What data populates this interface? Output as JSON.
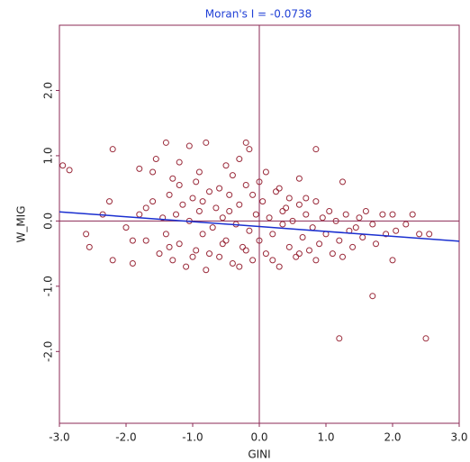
{
  "chart_data": {
    "type": "scatter",
    "title": "Moran's I = -0.0738",
    "x_label": "GINI",
    "y_label": "W_MIG",
    "xlim": [
      -3,
      3
    ],
    "ylim": [
      -3.1,
      3.0
    ],
    "xticks": [
      {
        "value": -3,
        "label": "-3.0"
      },
      {
        "value": -2,
        "label": "-2.0"
      },
      {
        "value": -1,
        "label": "-1.0"
      },
      {
        "value": 0,
        "label": "0.0"
      },
      {
        "value": 1,
        "label": "1.0"
      },
      {
        "value": 2,
        "label": "2.0"
      },
      {
        "value": 3,
        "label": "3.0"
      }
    ],
    "yticks": [
      {
        "value": -2,
        "label": "-2.0"
      },
      {
        "value": -1,
        "label": "-1.0"
      },
      {
        "value": 0,
        "label": "0.0"
      },
      {
        "value": 1,
        "label": "1.0"
      },
      {
        "value": 2,
        "label": "2.0"
      }
    ],
    "axis_color": "#8b2a55",
    "trend_color": "#1a2fd0",
    "trend_line": {
      "x": [
        -3,
        3
      ],
      "y": [
        0.14,
        -0.31
      ]
    },
    "series": [
      {
        "color": "#9a2a3a",
        "x": [
          -2.95,
          -2.85,
          -2.2,
          -1.4,
          -1.05,
          -0.8,
          -0.2,
          -0.15,
          0.85,
          1.25,
          0.6,
          1.7,
          1.2,
          2.5,
          2.0,
          -2.6,
          -2.55,
          -2.2,
          -1.9,
          -2.25,
          -2.35,
          -1.8,
          -1.55,
          -1.3,
          -1.6,
          -0.5,
          -0.3,
          -0.4,
          -0.9,
          -1.2,
          -2.0,
          -1.8,
          -1.7,
          -1.6,
          -1.5,
          -1.45,
          -1.4,
          -1.35,
          -1.3,
          -1.25,
          -1.2,
          -1.15,
          -1.1,
          -1.05,
          -1.0,
          -0.95,
          -0.9,
          -0.85,
          -0.8,
          -0.75,
          -0.7,
          -0.65,
          -0.6,
          -0.55,
          -0.5,
          -0.45,
          -0.4,
          -0.35,
          -0.3,
          -0.25,
          -0.2,
          -0.15,
          -0.1,
          -0.05,
          0.0,
          0.05,
          0.1,
          0.15,
          0.2,
          0.25,
          0.3,
          0.35,
          0.4,
          0.45,
          0.5,
          0.55,
          0.6,
          0.65,
          0.7,
          0.75,
          0.8,
          0.85,
          0.9,
          0.95,
          1.0,
          1.05,
          1.1,
          1.15,
          1.2,
          1.3,
          1.35,
          1.4,
          1.5,
          1.55,
          1.6,
          1.7,
          1.75,
          1.85,
          1.9,
          2.0,
          2.05,
          2.2,
          2.3,
          2.4,
          2.55,
          -1.9,
          -1.7,
          -1.2,
          -0.95,
          -0.6,
          -0.3,
          -0.1,
          0.1,
          0.3,
          0.45,
          -0.75,
          -0.55,
          -0.2,
          0.2,
          0.6,
          0.85,
          -1.0,
          -1.35,
          0.0,
          -0.45,
          0.35,
          0.7,
          -0.85,
          1.25,
          1.45
        ],
        "y": [
          0.85,
          0.78,
          1.1,
          1.2,
          1.15,
          1.2,
          1.2,
          1.1,
          1.1,
          0.6,
          0.65,
          -1.15,
          -1.8,
          -1.8,
          -0.6,
          -0.2,
          -0.4,
          -0.6,
          -0.65,
          0.3,
          0.1,
          0.8,
          0.95,
          0.65,
          0.75,
          0.85,
          0.95,
          0.7,
          0.75,
          0.9,
          -0.1,
          0.1,
          -0.3,
          0.3,
          -0.5,
          0.05,
          -0.2,
          0.4,
          -0.6,
          0.1,
          -0.35,
          0.25,
          -0.7,
          0.0,
          0.35,
          -0.45,
          0.15,
          -0.2,
          -0.75,
          0.45,
          -0.1,
          0.2,
          -0.55,
          0.05,
          -0.3,
          0.4,
          -0.65,
          -0.05,
          0.25,
          -0.4,
          0.55,
          -0.15,
          -0.6,
          0.1,
          -0.3,
          0.3,
          -0.5,
          0.05,
          -0.2,
          0.45,
          -0.7,
          -0.05,
          0.2,
          -0.4,
          0.0,
          -0.55,
          0.25,
          -0.25,
          0.1,
          -0.45,
          -0.1,
          0.3,
          -0.35,
          0.05,
          -0.2,
          0.15,
          -0.5,
          0.0,
          -0.3,
          0.1,
          -0.15,
          -0.4,
          0.05,
          -0.25,
          0.15,
          -0.05,
          -0.35,
          0.1,
          -0.2,
          0.1,
          -0.15,
          -0.05,
          0.1,
          -0.2,
          -0.2,
          -0.3,
          0.2,
          0.55,
          0.6,
          0.5,
          -0.7,
          0.4,
          0.75,
          0.5,
          0.35,
          -0.5,
          -0.35,
          -0.45,
          -0.6,
          -0.5,
          -0.6,
          -0.55,
          -0.4,
          0.6,
          0.15,
          0.15,
          0.35,
          0.3,
          -0.55,
          -0.1
        ]
      }
    ]
  }
}
